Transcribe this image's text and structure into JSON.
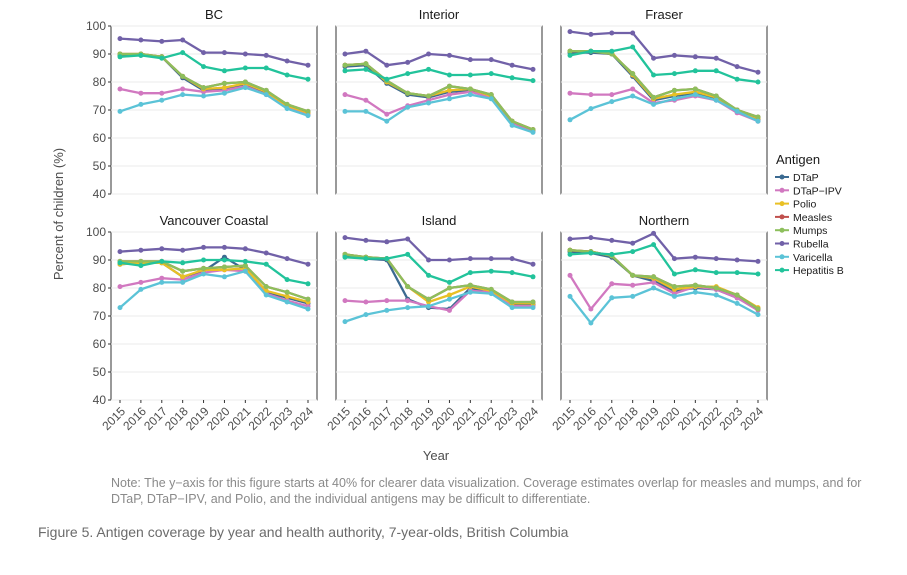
{
  "chart_data": {
    "type": "line",
    "layout": "facet-grid 2x3",
    "x": [
      2015,
      2016,
      2017,
      2018,
      2019,
      2020,
      2021,
      2022,
      2023,
      2024
    ],
    "xlabel": "Year",
    "ylabel": "Percent of children (%)",
    "ylim": [
      40,
      100
    ],
    "yticks": [
      40,
      50,
      60,
      70,
      80,
      90,
      100
    ],
    "legend_title": "Antigen",
    "legend_position": "right",
    "series_styles": [
      {
        "name": "DTaP",
        "color": "#3b6a91"
      },
      {
        "name": "DTaP−IPV",
        "color": "#d178c0"
      },
      {
        "name": "Polio",
        "color": "#e9c025"
      },
      {
        "name": "Measles",
        "color": "#c0504d"
      },
      {
        "name": "Mumps",
        "color": "#8dbf5c"
      },
      {
        "name": "Rubella",
        "color": "#7161a8"
      },
      {
        "name": "Varicella",
        "color": "#5bc3d7"
      },
      {
        "name": "Hepatitis B",
        "color": "#22c39b"
      }
    ],
    "panels": [
      {
        "title": "BC",
        "series": [
          {
            "name": "DTaP",
            "values": [
              89.5,
              89.5,
              89,
              81.5,
              77,
              77.5,
              79,
              76,
              71,
              68.5
            ]
          },
          {
            "name": "DTaP−IPV",
            "values": [
              77.5,
              76,
              76,
              77.5,
              76.5,
              77,
              78.5,
              75.5,
              71,
              68.5
            ]
          },
          {
            "name": "Polio",
            "values": [
              90,
              90,
              89,
              82,
              77.5,
              78,
              79.5,
              76.5,
              71.5,
              69
            ]
          },
          {
            "name": "Measles",
            "values": [
              90,
              90,
              89,
              82,
              78,
              79.5,
              80,
              77,
              72,
              69.5
            ]
          },
          {
            "name": "Mumps",
            "values": [
              90,
              90,
              89,
              82,
              78,
              79.5,
              80,
              77,
              72,
              69.5
            ]
          },
          {
            "name": "Rubella",
            "values": [
              95.5,
              95,
              94.5,
              95,
              90.5,
              90.5,
              90,
              89.5,
              87.5,
              86
            ]
          },
          {
            "name": "Varicella",
            "values": [
              69.5,
              72,
              73.5,
              75.5,
              75,
              76,
              78,
              75.5,
              70.5,
              68
            ]
          },
          {
            "name": "Hepatitis B",
            "values": [
              89,
              89.5,
              88.5,
              90.5,
              85.5,
              84,
              85,
              85,
              82.5,
              81
            ]
          }
        ]
      },
      {
        "title": "Interior",
        "series": [
          {
            "name": "DTaP",
            "values": [
              85.5,
              86,
              79.5,
              75.5,
              74.5,
              76.5,
              77,
              74.5,
              65.5,
              62.5
            ]
          },
          {
            "name": "DTaP−IPV",
            "values": [
              75.5,
              73.5,
              68.5,
              71.5,
              73.5,
              75.5,
              76.5,
              74.5,
              65.5,
              62.5
            ]
          },
          {
            "name": "Polio",
            "values": [
              86,
              86.5,
              80,
              76,
              75,
              77,
              77.5,
              75,
              66,
              63
            ]
          },
          {
            "name": "Measles",
            "values": [
              86,
              86.5,
              80.5,
              76,
              75,
              78.5,
              77.5,
              75.5,
              66,
              63
            ]
          },
          {
            "name": "Mumps",
            "values": [
              86,
              86.5,
              80.5,
              76,
              75,
              78.5,
              77.5,
              75.5,
              66,
              63
            ]
          },
          {
            "name": "Rubella",
            "values": [
              90,
              91,
              86,
              87,
              90,
              89.5,
              88,
              88,
              86,
              84.5
            ]
          },
          {
            "name": "Varicella",
            "values": [
              69.5,
              69.5,
              66,
              71,
              72.5,
              74,
              75.5,
              74,
              64.5,
              62
            ]
          },
          {
            "name": "Hepatitis B",
            "values": [
              84,
              84.5,
              81,
              83,
              84.5,
              82.5,
              82.5,
              83,
              81.5,
              80.5
            ]
          }
        ]
      },
      {
        "title": "Fraser",
        "series": [
          {
            "name": "DTaP",
            "values": [
              90.5,
              90.5,
              90,
              82,
              73.5,
              75,
              76,
              74,
              69.5,
              66.5
            ]
          },
          {
            "name": "DTaP−IPV",
            "values": [
              76,
              75.5,
              75.5,
              77.5,
              72.5,
              73.5,
              75,
              73.5,
              69,
              66
            ]
          },
          {
            "name": "Polio",
            "values": [
              91,
              91,
              90.5,
              82.5,
              74,
              75.5,
              76.5,
              74.5,
              70,
              67
            ]
          },
          {
            "name": "Measles",
            "values": [
              91,
              91,
              90,
              83,
              74.5,
              77,
              77.5,
              75,
              70,
              67.5
            ]
          },
          {
            "name": "Mumps",
            "values": [
              91,
              91,
              90,
              83,
              74.5,
              77,
              77.5,
              75,
              70,
              67.5
            ]
          },
          {
            "name": "Rubella",
            "values": [
              98,
              97,
              97.5,
              97.5,
              88.5,
              89.5,
              89,
              88.5,
              85.5,
              83.5
            ]
          },
          {
            "name": "Varicella",
            "values": [
              66.5,
              70.5,
              73,
              75,
              72,
              74,
              75.5,
              73.5,
              69.5,
              66
            ]
          },
          {
            "name": "Hepatitis B",
            "values": [
              89.5,
              91,
              91,
              92.5,
              82.5,
              83,
              84,
              84,
              81,
              80
            ]
          }
        ]
      },
      {
        "title": "Vancouver Coastal",
        "series": [
          {
            "name": "DTaP",
            "values": [
              88.5,
              89,
              89,
              84,
              86,
              91,
              86.5,
              78.5,
              76.5,
              74.5
            ]
          },
          {
            "name": "DTaP−IPV",
            "values": [
              80.5,
              82,
              83.5,
              83,
              85.5,
              86.5,
              86,
              78,
              75.5,
              73.5
            ]
          },
          {
            "name": "Polio",
            "values": [
              88.5,
              89,
              89,
              84,
              86.5,
              86.5,
              87,
              79,
              77,
              75
            ]
          },
          {
            "name": "Measles",
            "values": [
              89.5,
              89.5,
              89.5,
              86,
              87,
              87.5,
              88,
              80.5,
              78.5,
              76
            ]
          },
          {
            "name": "Mumps",
            "values": [
              89.5,
              89.5,
              89.5,
              86,
              87,
              87.5,
              88,
              80.5,
              78.5,
              76
            ]
          },
          {
            "name": "Rubella",
            "values": [
              93,
              93.5,
              94,
              93.5,
              94.5,
              94.5,
              94,
              92.5,
              90.5,
              88.5
            ]
          },
          {
            "name": "Varicella",
            "values": [
              73,
              79.5,
              82,
              82,
              85,
              84,
              86,
              77.5,
              75,
              72.5
            ]
          },
          {
            "name": "Hepatitis B",
            "values": [
              89,
              88,
              89.5,
              89,
              90,
              90,
              89.5,
              88.5,
              83,
              81.5
            ]
          }
        ]
      },
      {
        "title": "Island",
        "series": [
          {
            "name": "DTaP",
            "values": [
              91.5,
              90.5,
              90,
              76,
              73,
              72.5,
              80,
              78.5,
              74,
              74
            ]
          },
          {
            "name": "DTaP−IPV",
            "values": [
              75.5,
              75,
              75.5,
              75.5,
              73.5,
              72,
              79,
              78.5,
              73.5,
              73.5
            ]
          },
          {
            "name": "Polio",
            "values": [
              92,
              91,
              90.5,
              80.5,
              75,
              77.5,
              80.5,
              79,
              74.5,
              74.5
            ]
          },
          {
            "name": "Measles",
            "values": [
              92,
              91,
              90.5,
              80.5,
              76,
              80,
              81,
              79.5,
              75,
              75
            ]
          },
          {
            "name": "Mumps",
            "values": [
              92,
              91,
              90.5,
              80.5,
              76,
              80,
              81,
              79.5,
              75,
              75
            ]
          },
          {
            "name": "Rubella",
            "values": [
              98,
              97,
              96.5,
              97.5,
              90,
              90,
              90.5,
              90.5,
              90.5,
              88.5
            ]
          },
          {
            "name": "Varicella",
            "values": [
              68,
              70.5,
              72,
              73,
              73.5,
              76,
              78.5,
              78,
              73,
              73
            ]
          },
          {
            "name": "Hepatitis B",
            "values": [
              91,
              90.5,
              90.5,
              92,
              84.5,
              82,
              85.5,
              86,
              85.5,
              84
            ]
          }
        ]
      },
      {
        "title": "Northern",
        "series": [
          {
            "name": "DTaP",
            "values": [
              93,
              92.5,
              91,
              84.5,
              82.5,
              79,
              80,
              79.5,
              76.5,
              72.5
            ]
          },
          {
            "name": "DTaP−IPV",
            "values": [
              84.5,
              72.5,
              81.5,
              81,
              82,
              78,
              80.5,
              79.5,
              76.5,
              72
            ]
          },
          {
            "name": "Polio",
            "values": [
              93.5,
              93,
              91.5,
              84.5,
              83.5,
              79.5,
              80.5,
              80.5,
              77.5,
              73
            ]
          },
          {
            "name": "Measles",
            "values": [
              93.5,
              93,
              91.5,
              84.5,
              84,
              80.5,
              81,
              80,
              77.5,
              72.5
            ]
          },
          {
            "name": "Mumps",
            "values": [
              93.5,
              93,
              91.5,
              84.5,
              84,
              80.5,
              81,
              80,
              77.5,
              72.5
            ]
          },
          {
            "name": "Rubella",
            "values": [
              97.5,
              98,
              97,
              96,
              99.5,
              90.5,
              91,
              90.5,
              90,
              89.5
            ]
          },
          {
            "name": "Varicella",
            "values": [
              77,
              67.5,
              76.5,
              77,
              80,
              77,
              78.5,
              77.5,
              74.5,
              70.5
            ]
          },
          {
            "name": "Hepatitis B",
            "values": [
              92,
              92.5,
              92,
              93,
              95.5,
              85,
              86.5,
              85.5,
              85.5,
              85
            ]
          }
        ]
      }
    ]
  },
  "note": "Note: The y−axis for this figure starts at 40% for clearer data visualization. Coverage estimates overlap for measles and mumps, and for DTaP, DTaP−IPV, and Polio, and the individual antigens may be difficult to differentiate.",
  "caption": "Figure 5. Antigen coverage by year and health authority, 7-year-olds, British Columbia"
}
